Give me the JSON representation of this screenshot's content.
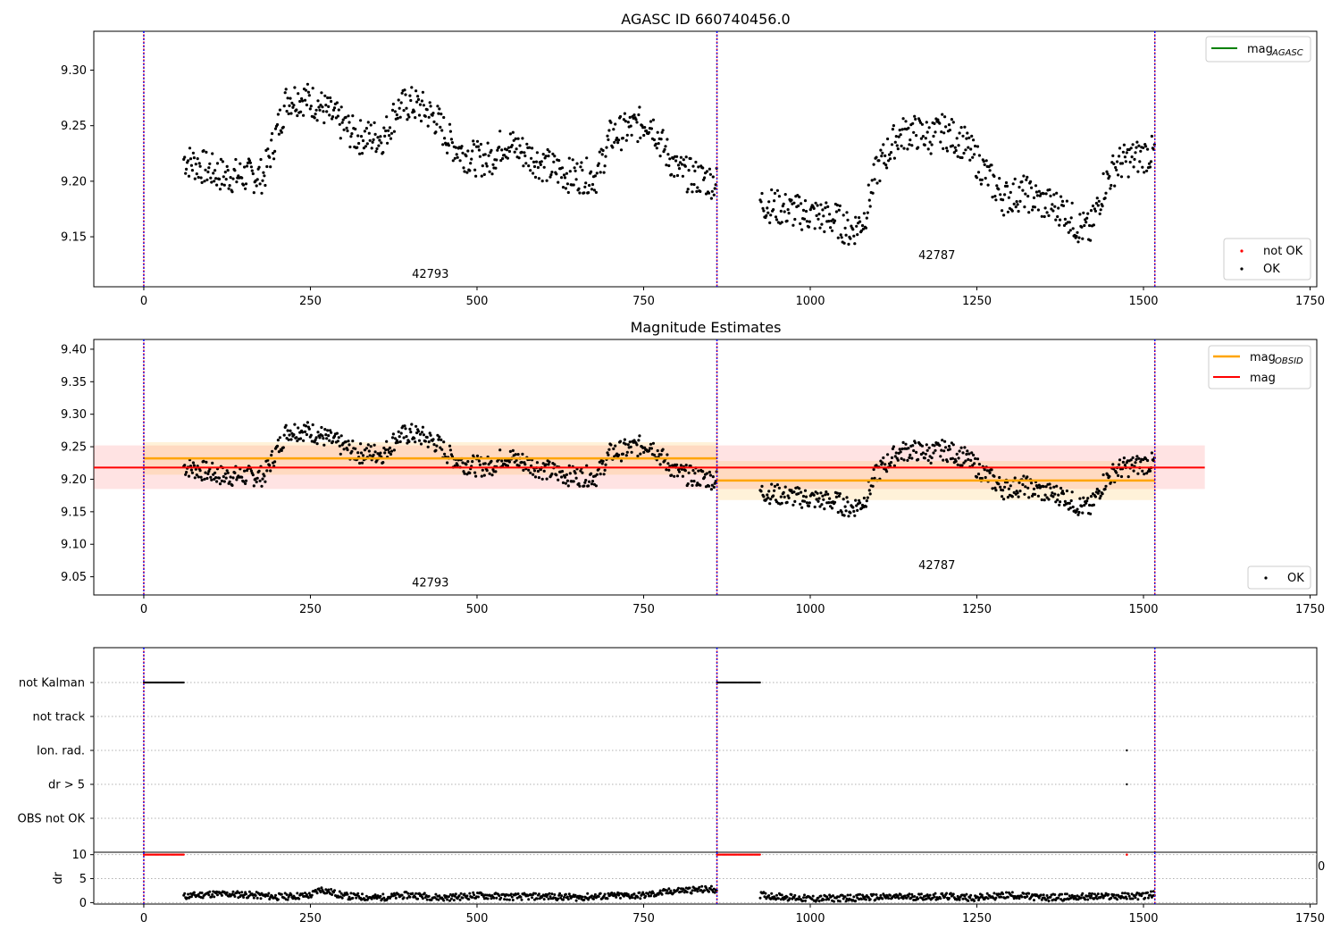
{
  "chart_data": [
    {
      "type": "scatter",
      "title": "AGASC ID 660740456.0",
      "xlim": [
        -75,
        1760
      ],
      "ylim": [
        9.105,
        9.335
      ],
      "xticks": [
        0,
        250,
        500,
        750,
        1000,
        1250,
        1500,
        1750
      ],
      "yticks": [
        9.15,
        9.2,
        9.25,
        9.3
      ],
      "ytick_labels": [
        "9.15",
        "9.20",
        "9.25",
        "9.30"
      ],
      "obs_boundaries": [
        0,
        860,
        1517
      ],
      "obsid_labels": [
        {
          "text": "42793",
          "x": 430,
          "y": 9.113
        },
        {
          "text": "42787",
          "x": 1190,
          "y": 9.13
        }
      ],
      "legends": [
        {
          "position": "top-right",
          "entries": [
            {
              "label": "mag",
              "subscript": "AGASC",
              "color": "#008000",
              "kind": "line"
            }
          ]
        },
        {
          "position": "bottom-right",
          "entries": [
            {
              "label": "not OK",
              "color": "#ff0000",
              "kind": "point"
            },
            {
              "label": "OK",
              "color": "#000000",
              "kind": "point"
            }
          ]
        }
      ],
      "series": [
        {
          "name": "OK",
          "color": "#000000",
          "marker": "point",
          "x": [
            60,
            120,
            180,
            215,
            240,
            260,
            290,
            320,
            360,
            380,
            400,
            420,
            440,
            460,
            480,
            500,
            520,
            540,
            560,
            600,
            640,
            680,
            700,
            720,
            740,
            760,
            780,
            800,
            820,
            855,
            930,
            960,
            1000,
            1040,
            1060,
            1080,
            1100,
            1130,
            1150,
            1180,
            1200,
            1230,
            1260,
            1290,
            1320,
            1350,
            1380,
            1400,
            1420,
            1440,
            1460,
            1480,
            1510
          ],
          "y": [
            9.22,
            9.205,
            9.205,
            9.275,
            9.275,
            9.27,
            9.255,
            9.24,
            9.24,
            9.265,
            9.27,
            9.265,
            9.255,
            9.235,
            9.225,
            9.22,
            9.22,
            9.235,
            9.23,
            9.215,
            9.205,
            9.205,
            9.24,
            9.245,
            9.25,
            9.255,
            9.23,
            9.21,
            9.205,
            9.2,
            9.18,
            9.175,
            9.17,
            9.165,
            9.155,
            9.165,
            9.21,
            9.24,
            9.245,
            9.24,
            9.245,
            9.235,
            9.21,
            9.185,
            9.19,
            9.18,
            9.175,
            9.16,
            9.155,
            9.195,
            9.215,
            9.22,
            9.225
          ]
        }
      ]
    },
    {
      "type": "scatter",
      "title": "Magnitude Estimates",
      "xlim": [
        -75,
        1760
      ],
      "ylim": [
        9.022,
        9.415
      ],
      "xticks": [
        0,
        250,
        500,
        750,
        1000,
        1250,
        1500,
        1750
      ],
      "yticks": [
        9.05,
        9.1,
        9.15,
        9.2,
        9.25,
        9.3,
        9.35,
        9.4
      ],
      "ytick_labels": [
        "9.05",
        "9.10",
        "9.15",
        "9.20",
        "9.25",
        "9.30",
        "9.35",
        "9.40"
      ],
      "obs_boundaries": [
        0,
        860,
        1517
      ],
      "obsid_labels": [
        {
          "text": "42793",
          "x": 430,
          "y": 9.035
        },
        {
          "text": "42787",
          "x": 1190,
          "y": 9.062
        }
      ],
      "mag": {
        "value": 9.218,
        "band": [
          9.185,
          9.252
        ],
        "x": [
          -75,
          1592
        ],
        "color": "#ff0000"
      },
      "mag_obsid": [
        {
          "x": [
            0,
            860
          ],
          "value": 9.232,
          "band": [
            9.207,
            9.257
          ]
        },
        {
          "x": [
            860,
            1517
          ],
          "value": 9.198,
          "band": [
            9.168,
            9.228
          ]
        }
      ],
      "legends": [
        {
          "position": "top-right",
          "entries": [
            {
              "label": "mag",
              "subscript": "OBSID",
              "color": "#ffa500",
              "kind": "line"
            },
            {
              "label": "mag",
              "color": "#ff0000",
              "kind": "line"
            }
          ]
        },
        {
          "position": "bottom-right",
          "entries": [
            {
              "label": "OK",
              "color": "#000000",
              "kind": "point"
            }
          ]
        }
      ],
      "series": [
        {
          "name": "OK",
          "color": "#000000",
          "marker": "point",
          "x": [
            60,
            120,
            180,
            215,
            240,
            260,
            290,
            320,
            360,
            380,
            400,
            420,
            440,
            460,
            480,
            500,
            520,
            540,
            560,
            600,
            640,
            680,
            700,
            720,
            740,
            760,
            780,
            800,
            820,
            855,
            930,
            960,
            1000,
            1040,
            1060,
            1080,
            1100,
            1130,
            1150,
            1180,
            1200,
            1230,
            1260,
            1290,
            1320,
            1350,
            1380,
            1400,
            1420,
            1440,
            1460,
            1480,
            1510
          ],
          "y": [
            9.22,
            9.205,
            9.205,
            9.275,
            9.275,
            9.27,
            9.255,
            9.24,
            9.24,
            9.265,
            9.27,
            9.265,
            9.255,
            9.235,
            9.225,
            9.22,
            9.22,
            9.235,
            9.23,
            9.215,
            9.205,
            9.205,
            9.24,
            9.245,
            9.25,
            9.255,
            9.23,
            9.21,
            9.205,
            9.2,
            9.18,
            9.175,
            9.17,
            9.165,
            9.155,
            9.165,
            9.21,
            9.24,
            9.245,
            9.24,
            9.245,
            9.235,
            9.21,
            9.185,
            9.19,
            9.18,
            9.175,
            9.16,
            9.155,
            9.195,
            9.215,
            9.22,
            9.225
          ]
        }
      ]
    },
    {
      "type": "scatter",
      "title": "",
      "xlim": [
        -75,
        1760
      ],
      "ylim": [
        0,
        6
      ],
      "categories": [
        "not Kalman",
        "not track",
        "Ion. rad.",
        "dr > 5",
        "OBS not OK"
      ],
      "obs_boundaries": [
        0,
        860,
        1517
      ],
      "flags": [
        {
          "category": "not Kalman",
          "ranges": [
            [
              0,
              60
            ],
            [
              860,
              925
            ]
          ]
        },
        {
          "category": "not track",
          "ranges": []
        },
        {
          "category": "Ion. rad.",
          "points": [
            1475
          ]
        },
        {
          "category": "dr > 5",
          "points": [
            1475
          ]
        },
        {
          "category": "OBS not OK",
          "ranges": []
        }
      ]
    },
    {
      "type": "scatter",
      "title": "",
      "ylabel": "dr",
      "xlim": [
        -75,
        1760
      ],
      "ylim": [
        -0.3,
        10.5
      ],
      "xticks": [
        0,
        250,
        500,
        750,
        1000,
        1250,
        1500,
        1750
      ],
      "yticks": [
        0,
        5,
        10
      ],
      "ytick_labels": [
        "0",
        "5",
        "10"
      ],
      "right_edge_label": "0",
      "obs_boundaries": [
        0,
        860,
        1517
      ],
      "series": [
        {
          "name": "dr > 5",
          "color": "#ff0000",
          "marker": "point",
          "x_ranges": [
            [
              0,
              60
            ],
            [
              860,
              925
            ]
          ],
          "points": [
            1475
          ],
          "y": 10
        },
        {
          "name": "dr",
          "color": "#000000",
          "marker": "point",
          "x": [
            60,
            100,
            150,
            200,
            250,
            265,
            300,
            350,
            400,
            450,
            500,
            550,
            600,
            650,
            700,
            750,
            800,
            855,
            930,
            1000,
            1100,
            1200,
            1250,
            1300,
            1350,
            1400,
            1450,
            1500,
            1515
          ],
          "y": [
            1.3,
            1.8,
            1.7,
            1.2,
            1.5,
            2.8,
            1.4,
            1.0,
            1.6,
            1.0,
            1.5,
            1.2,
            1.3,
            1.1,
            1.4,
            1.5,
            2.5,
            2.8,
            1.5,
            0.8,
            1.1,
            1.3,
            1.0,
            1.6,
            1.0,
            1.2,
            1.3,
            1.4,
            1.7
          ]
        }
      ]
    }
  ]
}
